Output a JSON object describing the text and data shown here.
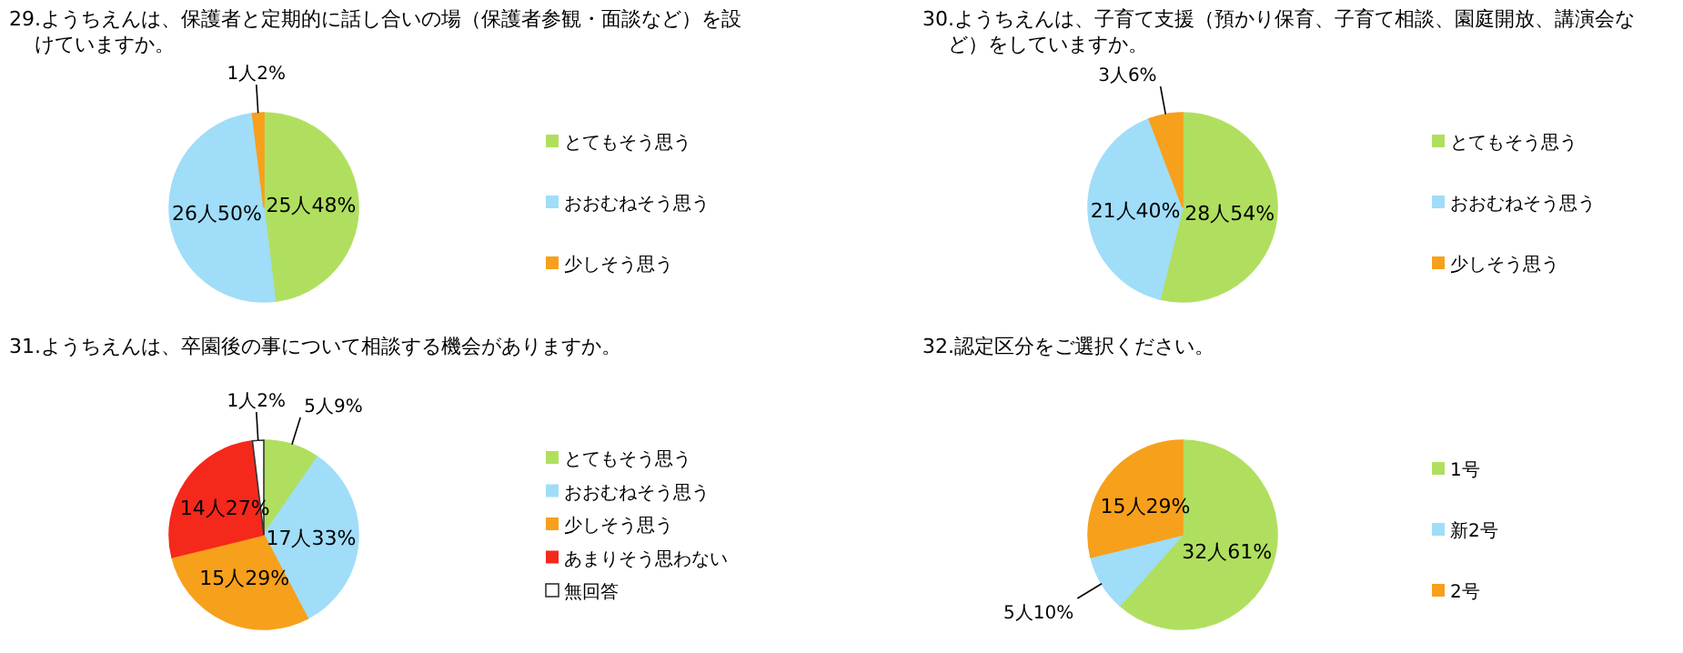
{
  "chart_data": [
    {
      "type": "pie",
      "title": "29.ようちえんは、保護者と定期的に話し合いの場（保護者参観・面談など）を設けていますか。",
      "categories": [
        "とてもそう思う",
        "おおむねそう思う",
        "少しそう思う"
      ],
      "values": [
        25,
        26,
        1
      ],
      "value_labels": [
        "25人48%",
        "26人50%",
        "1人2%"
      ],
      "colors": [
        "#b0df5f",
        "#a0ddf8",
        "#f7a01c"
      ],
      "legend": "right"
    },
    {
      "type": "pie",
      "title": "30.ようちえんは、子育て支援（預かり保育、子育て相談、園庭開放、講演会など）をしていますか。",
      "categories": [
        "とてもそう思う",
        "おおむねそう思う",
        "少しそう思う"
      ],
      "values": [
        28,
        21,
        3
      ],
      "value_labels": [
        "28人54%",
        "21人40%",
        "3人6%"
      ],
      "colors": [
        "#b0df5f",
        "#a0ddf8",
        "#f7a01c"
      ],
      "legend": "right"
    },
    {
      "type": "pie",
      "title": "31.ようちえんは、卒園後の事について相談する機会がありますか。",
      "categories": [
        "とてもそう思う",
        "おおむねそう思う",
        "少しそう思う",
        "あまりそう思わない",
        "無回答"
      ],
      "values": [
        5,
        17,
        15,
        14,
        1
      ],
      "value_labels": [
        "5人9%",
        "17人33%",
        "15人29%",
        "14人27%",
        "1人2%"
      ],
      "colors": [
        "#b0df5f",
        "#a0ddf8",
        "#f7a01c",
        "#f5281c",
        "#ffffff"
      ],
      "legend": "right"
    },
    {
      "type": "pie",
      "title": "32.認定区分をご選択ください。",
      "categories": [
        "1号",
        "新2号",
        "2号"
      ],
      "values": [
        32,
        5,
        15
      ],
      "value_labels": [
        "32人61%",
        "5人10%",
        "15人29%"
      ],
      "colors": [
        "#b0df5f",
        "#a0ddf8",
        "#f7a01c"
      ],
      "legend": "right"
    }
  ]
}
